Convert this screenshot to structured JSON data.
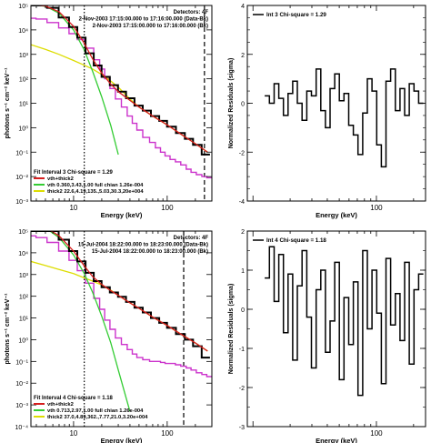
{
  "chart_data": [
    {
      "type": "line",
      "panel": "spectrum-interval-3",
      "xlabel": "Energy (keV)",
      "ylabel": "photons s⁻¹ cm⁻² keV⁻¹",
      "xscale": "log",
      "yscale": "log",
      "xlim": [
        3.5,
        300
      ],
      "ylim": [
        0.001,
        100000
      ],
      "x_ticks": [
        {
          "v": 10,
          "label": "10"
        },
        {
          "v": 100,
          "label": "100"
        }
      ],
      "y_ticks": [
        {
          "v": 100000,
          "label": "10⁵"
        },
        {
          "v": 10000,
          "label": "10⁴"
        },
        {
          "v": 1000,
          "label": "10³"
        },
        {
          "v": 100,
          "label": "10²"
        },
        {
          "v": 10,
          "label": "10¹"
        },
        {
          "v": 1,
          "label": "10⁰"
        },
        {
          "v": 0.1,
          "label": "10⁻¹"
        },
        {
          "v": 0.01,
          "label": "10⁻²"
        },
        {
          "v": 0.001,
          "label": "10⁻³"
        }
      ],
      "header_lines": [
        "Detectors: 4F",
        "2-Nov-2003 17:15:00.000 to 17:16:00.000 (Data-Bk)",
        "2-Nov-2003 17:15:00.000 to 17:16:00.000 (Bk)"
      ],
      "legend_title": "Fit Interval 3   Chi-square = 1.29",
      "vlines": [
        {
          "x": 13,
          "style": "dotted"
        },
        {
          "x": 250,
          "style": "dashed"
        }
      ],
      "series": [
        {
          "name": "vth+thick2",
          "role": "model-total",
          "color": "#d61e1e",
          "x": [
            3.5,
            5,
            7,
            10,
            13,
            16,
            20,
            25,
            30,
            40,
            50,
            70,
            100,
            140,
            200,
            270
          ],
          "y": [
            110000,
            95000,
            55000,
            14000,
            2800,
            650,
            170,
            60,
            30,
            13,
            7,
            3,
            1.3,
            0.55,
            0.22,
            0.1
          ]
        },
        {
          "name": "vth 0.360,3.43,1.00  full chian 1.26e-004",
          "role": "thermal",
          "color": "#33cc33",
          "x": [
            3.5,
            5,
            7,
            10,
            13,
            16,
            20,
            25,
            30
          ],
          "y": [
            110000,
            93000,
            48000,
            10000,
            1500,
            200,
            18,
            1.2,
            0.08
          ]
        },
        {
          "name": "thick2 22.6,4.19,135.,5.03,30.3,20e+004",
          "role": "nonthermal",
          "color": "#dddd00",
          "x": [
            3.5,
            5,
            7,
            10,
            13,
            16,
            20,
            25,
            30,
            40,
            50,
            70,
            100,
            140,
            200,
            270
          ],
          "y": [
            2500,
            1600,
            1000,
            560,
            360,
            250,
            150,
            80,
            45,
            15,
            7,
            3,
            1.3,
            0.55,
            0.22,
            0.1
          ]
        },
        {
          "name": "Data",
          "role": "data",
          "color": "#000000",
          "x": [
            3.5,
            4.5,
            6,
            8,
            10,
            12,
            15,
            18,
            22,
            27,
            33,
            40,
            50,
            60,
            75,
            90,
            110,
            140,
            170,
            210,
            260
          ],
          "y": [
            120000,
            105000,
            80000,
            32000,
            13000,
            4800,
            1100,
            350,
            120,
            55,
            30,
            16,
            8,
            5,
            3,
            1.9,
            1.1,
            0.6,
            0.35,
            0.2,
            0.08
          ]
        },
        {
          "name": "Background",
          "role": "background",
          "color": "#cc33cc",
          "x": [
            3.5,
            4.5,
            6,
            8,
            10,
            12,
            15,
            18,
            20,
            23,
            26,
            30,
            35,
            40,
            45,
            50,
            60,
            70,
            80,
            90,
            100,
            115,
            130,
            150,
            170,
            190,
            220,
            250,
            280
          ],
          "y": [
            30000,
            28000,
            20000,
            12000,
            7000,
            4000,
            1800,
            600,
            250,
            100,
            40,
            15,
            7,
            3,
            1.5,
            0.8,
            0.4,
            0.25,
            0.15,
            0.1,
            0.07,
            0.05,
            0.04,
            0.03,
            0.02,
            0.015,
            0.012,
            0.01,
            0.009
          ]
        }
      ]
    },
    {
      "type": "line",
      "panel": "residuals-interval-3",
      "xlabel": "Energy (keV)",
      "ylabel": "Normalized Residuals (sigma)",
      "xscale": "log",
      "xlim": [
        9,
        250
      ],
      "ylim": [
        -4,
        4
      ],
      "x_ticks": [
        {
          "v": 100,
          "label": "100"
        }
      ],
      "y_ticks": [
        {
          "v": 4,
          "label": "4"
        },
        {
          "v": 2,
          "label": "2"
        },
        {
          "v": 0,
          "label": "0"
        },
        {
          "v": -2,
          "label": "-2"
        },
        {
          "v": -4,
          "label": "-4"
        }
      ],
      "legend": "Int 3   Chi-square = 1.29",
      "series": [
        {
          "name": "Int 3",
          "color": "#000000",
          "x": [
            13.0,
            14.2,
            15.5,
            16.9,
            18.4,
            20.1,
            21.9,
            23.9,
            26.1,
            28.5,
            31.1,
            33.9,
            37.0,
            40.3,
            44.0,
            48.0,
            52.3,
            57.1,
            62.3,
            67.9,
            74.1,
            80.8,
            88.2,
            96.2,
            105,
            114.5,
            124.9,
            136.2,
            148.6,
            162.1,
            176.8,
            192.9,
            210.4,
            229.5
          ],
          "y": [
            0.3,
            0.0,
            0.8,
            0.2,
            -0.5,
            0.4,
            0.9,
            0.0,
            -0.7,
            0.5,
            0.3,
            1.4,
            -0.3,
            -1.0,
            0.6,
            1.2,
            0.1,
            0.4,
            -0.9,
            -1.3,
            -2.1,
            -0.4,
            1.0,
            0.5,
            -1.7,
            -2.6,
            0.9,
            1.4,
            -0.3,
            0.6,
            -0.5,
            0.8,
            0.5,
            0.0
          ]
        }
      ]
    },
    {
      "type": "line",
      "panel": "spectrum-interval-4",
      "xlabel": "Energy (keV)",
      "ylabel": "photons s⁻¹ cm⁻² keV⁻¹",
      "xscale": "log",
      "yscale": "log",
      "xlim": [
        3.5,
        300
      ],
      "ylim": [
        0.0001,
        100000
      ],
      "x_ticks": [
        {
          "v": 10,
          "label": "10"
        },
        {
          "v": 100,
          "label": "100"
        }
      ],
      "y_ticks": [
        {
          "v": 100000,
          "label": "10⁵"
        },
        {
          "v": 10000,
          "label": "10⁴"
        },
        {
          "v": 1000,
          "label": "10³"
        },
        {
          "v": 100,
          "label": "10²"
        },
        {
          "v": 10,
          "label": "10¹"
        },
        {
          "v": 1,
          "label": "10⁰"
        },
        {
          "v": 0.1,
          "label": "10⁻¹"
        },
        {
          "v": 0.01,
          "label": "10⁻²"
        },
        {
          "v": 0.001,
          "label": "10⁻³"
        },
        {
          "v": 0.0001,
          "label": "10⁻⁴"
        }
      ],
      "header_lines": [
        "Detectors: 4F",
        "15-Jul-2004 18:22:00.000 to 18:23:00.000 (Data-Bk)",
        "15-Jul-2004 18:22:00.000 to 18:23:00.000 (Bk)"
      ],
      "legend_title": "Fit Interval 4   Chi-square = 1.18",
      "vlines": [
        {
          "x": 13,
          "style": "dotted"
        },
        {
          "x": 150,
          "style": "dashed"
        }
      ],
      "series": [
        {
          "name": "vth+thick2",
          "role": "model-total",
          "color": "#d61e1e",
          "x": [
            3.5,
            5,
            7,
            10,
            13,
            16,
            20,
            25,
            30,
            40,
            50,
            70,
            100,
            140,
            200,
            270
          ],
          "y": [
            200000,
            150000,
            60000,
            12000,
            2500,
            800,
            350,
            180,
            110,
            50,
            28,
            11,
            4.5,
            1.8,
            0.7,
            0.3
          ]
        },
        {
          "name": "vth 0.713,2.97,1.00  full chian 1.26e-004",
          "role": "thermal",
          "color": "#33cc33",
          "x": [
            3.5,
            5,
            7,
            10,
            13,
            16,
            20,
            25,
            30,
            40
          ],
          "y": [
            200000,
            140000,
            50000,
            8000,
            1100,
            150,
            12,
            0.7,
            0.04,
            0.0005
          ]
        },
        {
          "name": "thick2 37.0,4.89,362.,7.77,21.0,3.20e+004",
          "role": "nonthermal",
          "color": "#dddd00",
          "x": [
            3.5,
            5,
            7,
            10,
            13,
            16,
            20,
            25,
            30,
            40,
            50,
            70,
            100,
            140,
            200,
            270
          ],
          "y": [
            4000,
            2600,
            1700,
            1100,
            700,
            500,
            330,
            190,
            110,
            50,
            28,
            11,
            4.5,
            1.8,
            0.7,
            0.3
          ]
        },
        {
          "name": "Data",
          "role": "data",
          "color": "#000000",
          "x": [
            3.5,
            4.5,
            6,
            8,
            10,
            12,
            15,
            18,
            22,
            27,
            33,
            40,
            50,
            60,
            75,
            90,
            110,
            140,
            170,
            210,
            260
          ],
          "y": [
            250000,
            210000,
            130000,
            40000,
            12000,
            4000,
            1200,
            500,
            260,
            150,
            95,
            55,
            30,
            18,
            10,
            6,
            3.5,
            1.8,
            1.0,
            0.5,
            0.15
          ]
        },
        {
          "name": "Background",
          "role": "background",
          "color": "#cc33cc",
          "x": [
            3.5,
            4.5,
            6,
            8,
            10,
            12,
            15,
            18,
            20,
            23,
            26,
            30,
            35,
            40,
            45,
            50,
            60,
            70,
            80,
            90,
            100,
            115,
            130,
            150,
            170,
            190,
            220,
            250,
            280
          ],
          "y": [
            60000,
            50000,
            30000,
            12000,
            4500,
            1500,
            400,
            80,
            25,
            8,
            3,
            1.2,
            0.6,
            0.35,
            0.22,
            0.15,
            0.12,
            0.1,
            0.1,
            0.09,
            0.08,
            0.08,
            0.07,
            0.06,
            0.05,
            0.04,
            0.03,
            0.025,
            0.02
          ]
        }
      ]
    },
    {
      "type": "line",
      "panel": "residuals-interval-4",
      "xlabel": "Energy (keV)",
      "ylabel": "Normalized Residuals (sigma)",
      "xscale": "log",
      "xlim": [
        9,
        250
      ],
      "ylim": [
        -3,
        2
      ],
      "x_ticks": [
        {
          "v": 100,
          "label": "100"
        }
      ],
      "y_ticks": [
        {
          "v": 2,
          "label": "2"
        },
        {
          "v": 1,
          "label": "1"
        },
        {
          "v": 0,
          "label": "0"
        },
        {
          "v": -1,
          "label": "-1"
        },
        {
          "v": -2,
          "label": "-2"
        },
        {
          "v": -3,
          "label": "-3"
        }
      ],
      "legend": "Int 4   Chi-square = 1.18",
      "series": [
        {
          "name": "Int 4",
          "color": "#000000",
          "x": [
            13.0,
            14.2,
            15.5,
            16.9,
            18.4,
            20.1,
            21.9,
            23.9,
            26.1,
            28.5,
            31.1,
            33.9,
            37.0,
            40.3,
            44.0,
            48.0,
            52.3,
            57.1,
            62.3,
            67.9,
            74.1,
            80.8,
            88.2,
            96.2,
            105,
            114.5,
            124.9,
            136.2,
            148.6,
            162.1,
            176.8,
            192.9,
            210.4,
            229.5
          ],
          "y": [
            0.8,
            1.6,
            0.2,
            1.4,
            -0.6,
            0.9,
            -1.3,
            0.6,
            1.5,
            -0.2,
            -1.5,
            0.5,
            1.0,
            -1.1,
            -0.3,
            1.2,
            -1.8,
            0.3,
            -0.9,
            0.7,
            -2.2,
            1.5,
            -0.5,
            1.0,
            -0.1,
            -1.9,
            1.3,
            -0.4,
            0.4,
            -0.8,
            1.2,
            -1.4,
            0.5,
            0.9
          ]
        }
      ]
    }
  ]
}
